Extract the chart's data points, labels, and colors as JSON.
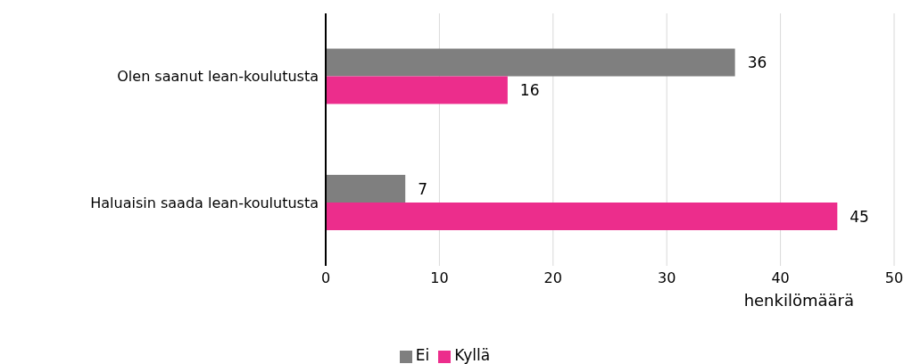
{
  "chart_data": {
    "type": "bar",
    "orientation": "horizontal",
    "categories": [
      "Olen saanut lean-koulutusta",
      "Haluaisin saada lean-koulutusta"
    ],
    "series": [
      {
        "name": "Ei",
        "color": "#7f7f7f",
        "values": [
          36,
          7
        ]
      },
      {
        "name": "Kyllä",
        "color": "#ec2d8c",
        "values": [
          16,
          45
        ]
      }
    ],
    "xlabel": "henkilömäärä",
    "xlim": [
      0,
      50
    ],
    "xticks": [
      0,
      10,
      20,
      30,
      40,
      50
    ],
    "grid": "x",
    "data_labels": true,
    "legend": "bottom"
  }
}
